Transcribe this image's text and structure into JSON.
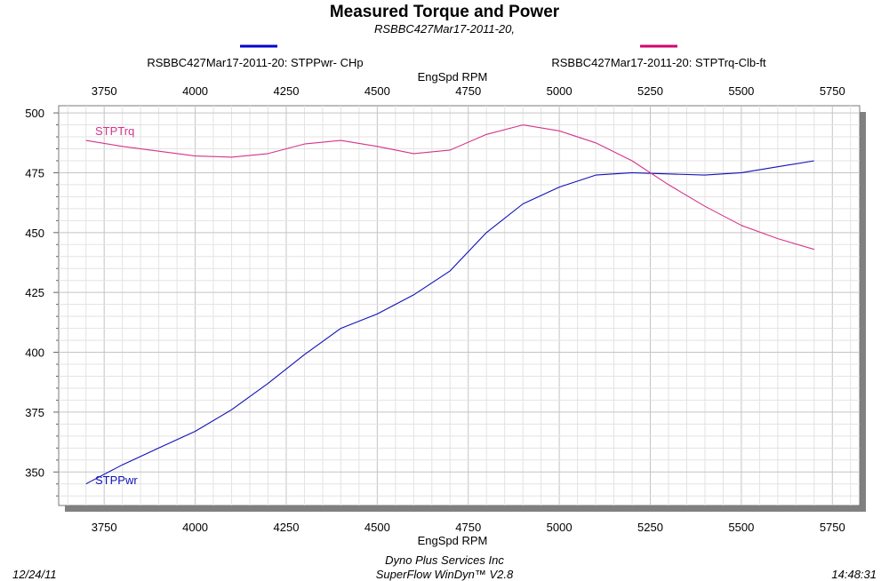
{
  "header": {
    "title": "Measured Torque and Power",
    "subtitle": "RSBBC427Mar17-2011-20,"
  },
  "footer": {
    "date": "12/24/11",
    "company": "Dyno Plus Services Inc",
    "software": "SuperFlow WinDyn™ V2.8",
    "time": "14:48:31"
  },
  "colors": {
    "power": "#1010b8",
    "torque": "#d6338a",
    "grid": "#cfcfcf",
    "frame_shadow": "#808080",
    "legend_power": "#0000cc",
    "legend_torque": "#d4006f"
  },
  "chart_data": {
    "type": "line",
    "title": "Measured Torque and Power",
    "subtitle": "RSBBC427Mar17-2011-20,",
    "xlabel": "EngSpd  RPM",
    "ylabel": "",
    "xlim": [
      3625,
      5825
    ],
    "ylim": [
      336,
      503
    ],
    "x_ticks": [
      3750,
      4000,
      4250,
      4500,
      4750,
      5000,
      5250,
      5500,
      5750
    ],
    "y_ticks": [
      350,
      375,
      400,
      425,
      450,
      475,
      500
    ],
    "grid": true,
    "legend_placement": "top",
    "series": [
      {
        "name": "RSBBC427Mar17-2011-20: STPPwr- CHp",
        "label": "STPPwr",
        "color": "#1010b8",
        "x": [
          3700,
          3800,
          3900,
          4000,
          4100,
          4200,
          4300,
          4400,
          4500,
          4600,
          4700,
          4800,
          4900,
          5000,
          5100,
          5200,
          5300,
          5400,
          5500,
          5600,
          5700
        ],
        "values": [
          345,
          353,
          360,
          367,
          376,
          387,
          399,
          410,
          416,
          424,
          434,
          450,
          462,
          469,
          474,
          475,
          474.5,
          474,
          475,
          477.5,
          480
        ]
      },
      {
        "name": "RSBBC427Mar17-2011-20: STPTrq-Clb-ft",
        "label": "STPTrq",
        "color": "#d6338a",
        "x": [
          3700,
          3800,
          3900,
          4000,
          4100,
          4200,
          4300,
          4400,
          4500,
          4600,
          4700,
          4800,
          4900,
          5000,
          5100,
          5200,
          5300,
          5400,
          5500,
          5600,
          5700
        ],
        "values": [
          488.5,
          486,
          484,
          482,
          481.5,
          483,
          487,
          488.5,
          486,
          483,
          484.5,
          491,
          495,
          492.5,
          487.5,
          480,
          470,
          461,
          453,
          447.5,
          443
        ]
      }
    ]
  }
}
